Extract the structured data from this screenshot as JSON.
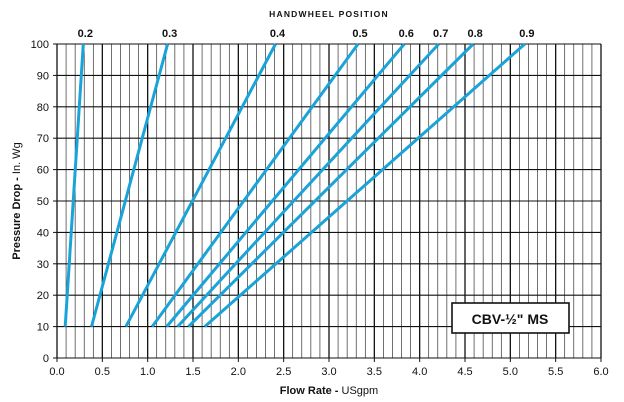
{
  "chart_data": {
    "type": "line",
    "title": "HANDWHEEL POSITION",
    "xlabel_bold": "Flow Rate -",
    "xlabel_rest": " USgpm",
    "ylabel_bold": "Pressure Drop -",
    "ylabel_rest": " In. Wg",
    "model_label": "CBV-½\" MS",
    "xlim": [
      0,
      6
    ],
    "ylim": [
      0,
      100
    ],
    "x_ticks": [
      "0.0",
      "0.5",
      "1.0",
      "1.5",
      "2.0",
      "2.5",
      "3.0",
      "3.5",
      "4.0",
      "4.5",
      "5.0",
      "5.5",
      "6.0"
    ],
    "y_ticks": [
      "0",
      "10",
      "20",
      "30",
      "40",
      "50",
      "60",
      "70",
      "80",
      "90",
      "100"
    ],
    "x_minor_step": 0.1,
    "grid": true,
    "line_color": "#1aa3d9",
    "series": [
      {
        "name": "0.2",
        "x": [
          0.09,
          0.29
        ],
        "y": [
          10,
          100
        ]
      },
      {
        "name": "0.3",
        "x": [
          0.38,
          1.22
        ],
        "y": [
          10,
          100
        ]
      },
      {
        "name": "0.4",
        "x": [
          0.76,
          2.41
        ],
        "y": [
          10,
          100
        ]
      },
      {
        "name": "0.5",
        "x": [
          1.05,
          3.32
        ],
        "y": [
          10,
          100
        ]
      },
      {
        "name": "0.6",
        "x": [
          1.21,
          3.83
        ],
        "y": [
          10,
          100
        ]
      },
      {
        "name": "0.7",
        "x": [
          1.33,
          4.21
        ],
        "y": [
          10,
          100
        ]
      },
      {
        "name": "0.8",
        "x": [
          1.45,
          4.59
        ],
        "y": [
          10,
          100
        ]
      },
      {
        "name": "0.9",
        "x": [
          1.63,
          5.16
        ],
        "y": [
          10,
          100
        ]
      }
    ]
  }
}
